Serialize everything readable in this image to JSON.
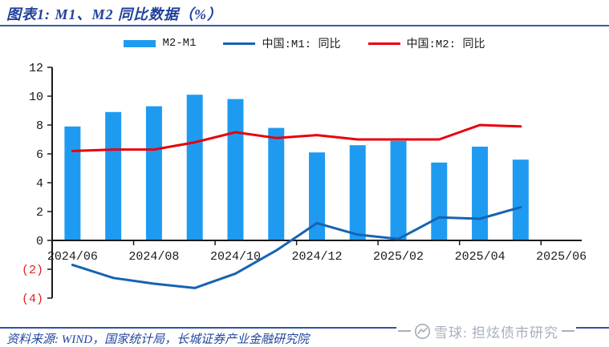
{
  "header": {
    "title": "图表1: M1、M2 同比数据（%）"
  },
  "legend": [
    {
      "label": "M2-M1",
      "type": "bar",
      "color": "#1e9bf0"
    },
    {
      "label": "中国:M1: 同比",
      "type": "line",
      "color": "#1663b2"
    },
    {
      "label": "中国:M2: 同比",
      "type": "line",
      "color": "#e8000b"
    }
  ],
  "chart_data": {
    "type": "combo",
    "title": "图表1: M1、M2 同比数据（%）",
    "categories": [
      "2024/06",
      "2024/07",
      "2024/08",
      "2024/09",
      "2024/10",
      "2024/11",
      "2024/12",
      "2025/01",
      "2025/02",
      "2025/03",
      "2025/04",
      "2025/05"
    ],
    "series": [
      {
        "name": "M2-M1",
        "type": "bar",
        "color": "#1e9bf0",
        "values": [
          7.9,
          8.9,
          9.3,
          10.1,
          9.8,
          7.8,
          6.1,
          6.6,
          6.9,
          5.4,
          6.5,
          5.6
        ]
      },
      {
        "name": "中国:M1: 同比",
        "type": "line",
        "color": "#1663b2",
        "values": [
          -1.7,
          -2.6,
          -3.0,
          -3.3,
          -2.3,
          -0.7,
          1.2,
          0.4,
          0.1,
          1.6,
          1.5,
          2.3
        ]
      },
      {
        "name": "中国:M2: 同比",
        "type": "line",
        "color": "#e8000b",
        "values": [
          6.2,
          6.3,
          6.3,
          6.8,
          7.5,
          7.1,
          7.3,
          7.0,
          7.0,
          7.0,
          8.0,
          7.9
        ]
      }
    ],
    "x_axis": {
      "tick_labels": [
        "2024/06",
        "2024/08",
        "2024/10",
        "2024/12",
        "2025/02",
        "2025/04",
        "2025/06"
      ]
    },
    "y_axis": {
      "min": -4,
      "max": 12,
      "ticks": [
        {
          "value": 12,
          "label": "12"
        },
        {
          "value": 10,
          "label": "10"
        },
        {
          "value": 8,
          "label": "8"
        },
        {
          "value": 6,
          "label": "6"
        },
        {
          "value": 4,
          "label": "4"
        },
        {
          "value": 2,
          "label": "2"
        },
        {
          "value": 0,
          "label": "0"
        },
        {
          "value": -2,
          "label": "(2)"
        },
        {
          "value": -4,
          "label": "(4)"
        }
      ],
      "negative_label_color": "#e02020"
    },
    "ylim": [
      -4,
      12
    ],
    "grid": false,
    "legend_position": "top"
  },
  "footer": {
    "source": "资料来源: WIND，国家统计局，长城证券产业金融研究院",
    "watermark": "雪球: 担炫债市研究"
  },
  "colors": {
    "title": "#21409a",
    "rule": "#3053a4",
    "axis": "#1a1a1a",
    "watermark": "#a8b0bc"
  }
}
